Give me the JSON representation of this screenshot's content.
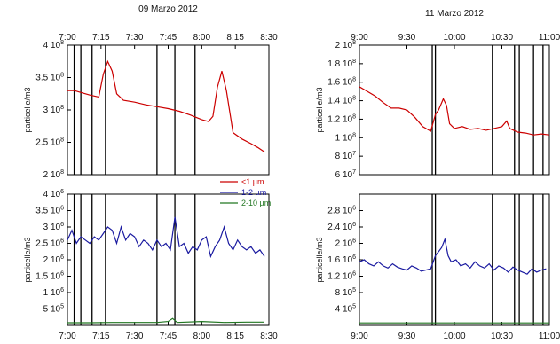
{
  "colors": {
    "lt1": "#cc0000",
    "r12": "#1a1aa0",
    "r210": "#227722",
    "frame": "#000000"
  },
  "legend": [
    {
      "label": "<1 µm",
      "color": "#cc0000"
    },
    {
      "label": "1-2 µm",
      "color": "#1a1aa0"
    },
    {
      "label": "2-10 µm",
      "color": "#227722"
    }
  ],
  "chart_data": [
    {
      "type": "line",
      "panel": "top-left",
      "title": "09 Marzo 2012",
      "ylabel": "particelle/m3",
      "xlim": [
        "7:00",
        "8:30"
      ],
      "x_ticks": [
        "7:00",
        "7:15",
        "7:30",
        "7:45",
        "8:00",
        "8:15",
        "8:30"
      ],
      "ylim": [
        200000000.0,
        400000000.0
      ],
      "y_ticks": [
        {
          "v": 200000000.0,
          "label": "2 10^8"
        },
        {
          "v": 250000000.0,
          "label": "2.5 10^8"
        },
        {
          "v": 300000000.0,
          "label": "3 10^8"
        },
        {
          "v": 350000000.0,
          "label": "3.5 10^8"
        },
        {
          "v": 400000000.0,
          "label": "4 10^8"
        }
      ],
      "event_lines": [
        "7:03",
        "7:06",
        "7:11",
        "7:17",
        "7:40",
        "7:48",
        "7:57"
      ],
      "series": [
        {
          "name": "<1 µm",
          "color": "#cc0000",
          "x": [
            "7:00",
            "7:03",
            "7:06",
            "7:10",
            "7:14",
            "7:16",
            "7:18",
            "7:20",
            "7:22",
            "7:25",
            "7:30",
            "7:35",
            "7:40",
            "7:45",
            "7:50",
            "7:55",
            "8:00",
            "8:03",
            "8:05",
            "8:07",
            "8:09",
            "8:11",
            "8:14",
            "8:18",
            "8:22",
            "8:25",
            "8:28"
          ],
          "y": [
            330000000.0,
            330000000.0,
            327000000.0,
            323000000.0,
            320000000.0,
            355000000.0,
            375000000.0,
            360000000.0,
            325000000.0,
            315000000.0,
            312000000.0,
            308000000.0,
            305000000.0,
            302000000.0,
            298000000.0,
            292000000.0,
            285000000.0,
            282000000.0,
            290000000.0,
            335000000.0,
            360000000.0,
            330000000.0,
            265000000.0,
            255000000.0,
            248000000.0,
            242000000.0,
            235000000.0
          ]
        }
      ]
    },
    {
      "type": "line",
      "panel": "top-right",
      "title": "11 Marzo 2012",
      "ylabel": "particelle/m3",
      "xlim": [
        "9:00",
        "11:00"
      ],
      "x_ticks": [
        "9:00",
        "9:30",
        "10:00",
        "10:30",
        "11:00"
      ],
      "ylim": [
        60000000.0,
        200000000.0
      ],
      "y_ticks": [
        {
          "v": 60000000.0,
          "label": "6 10^7"
        },
        {
          "v": 80000000.0,
          "label": "8 10^7"
        },
        {
          "v": 100000000.0,
          "label": "1 10^8"
        },
        {
          "v": 120000000.0,
          "label": "1.2 10^8"
        },
        {
          "v": 140000000.0,
          "label": "1.4 10^8"
        },
        {
          "v": 160000000.0,
          "label": "1.6 10^8"
        },
        {
          "v": 180000000.0,
          "label": "1.8 10^8"
        },
        {
          "v": 200000000.0,
          "label": "2 10^8"
        }
      ],
      "event_lines": [
        "9:46",
        "9:48",
        "10:24",
        "10:38",
        "10:41",
        "10:50",
        "10:56"
      ],
      "series": [
        {
          "name": "<1 µm",
          "color": "#cc0000",
          "x": [
            "9:00",
            "9:05",
            "9:10",
            "9:15",
            "9:20",
            "9:25",
            "9:30",
            "9:35",
            "9:40",
            "9:45",
            "9:48",
            "9:50",
            "9:53",
            "9:55",
            "9:57",
            "10:00",
            "10:05",
            "10:10",
            "10:15",
            "10:20",
            "10:25",
            "10:30",
            "10:33",
            "10:35",
            "10:40",
            "10:45",
            "10:50",
            "10:55",
            "11:00"
          ],
          "y": [
            155000000.0,
            150000000.0,
            145000000.0,
            138000000.0,
            132000000.0,
            132000000.0,
            130000000.0,
            122000000.0,
            112000000.0,
            107000000.0,
            125000000.0,
            130000000.0,
            142000000.0,
            135000000.0,
            115000000.0,
            110000000.0,
            112000000.0,
            109000000.0,
            110000000.0,
            108000000.0,
            110000000.0,
            112000000.0,
            118000000.0,
            110000000.0,
            106000000.0,
            105000000.0,
            103000000.0,
            104000000.0,
            103000000.0
          ]
        }
      ]
    },
    {
      "type": "line",
      "panel": "bottom-left",
      "ylabel": "particelle/m3",
      "xlim": [
        "7:00",
        "8:30"
      ],
      "x_ticks": [
        "7:00",
        "7:15",
        "7:30",
        "7:45",
        "8:00",
        "8:15",
        "8:30"
      ],
      "ylim": [
        0,
        4000000.0
      ],
      "y_ticks": [
        {
          "v": 500000.0,
          "label": "5 10^5"
        },
        {
          "v": 1000000.0,
          "label": "1 10^6"
        },
        {
          "v": 1500000.0,
          "label": "1.5 10^6"
        },
        {
          "v": 2000000.0,
          "label": "2 10^6"
        },
        {
          "v": 2500000.0,
          "label": "2.5 10^6"
        },
        {
          "v": 3000000.0,
          "label": "3 10^6"
        },
        {
          "v": 3500000.0,
          "label": "3.5 10^6"
        },
        {
          "v": 4000000.0,
          "label": "4 10^6"
        }
      ],
      "event_lines": [
        "7:03",
        "7:06",
        "7:11",
        "7:17",
        "7:40",
        "7:48",
        "7:57"
      ],
      "series": [
        {
          "name": "1-2 µm",
          "color": "#1a1aa0",
          "x": [
            "7:00",
            "7:02",
            "7:04",
            "7:06",
            "7:08",
            "7:10",
            "7:12",
            "7:14",
            "7:16",
            "7:18",
            "7:20",
            "7:22",
            "7:24",
            "7:26",
            "7:28",
            "7:30",
            "7:32",
            "7:34",
            "7:36",
            "7:38",
            "7:40",
            "7:42",
            "7:44",
            "7:46",
            "7:48",
            "7:50",
            "7:52",
            "7:54",
            "7:56",
            "7:58",
            "8:00",
            "8:02",
            "8:04",
            "8:06",
            "8:08",
            "8:10",
            "8:12",
            "8:14",
            "8:16",
            "8:18",
            "8:20",
            "8:22",
            "8:24",
            "8:26",
            "8:28"
          ],
          "y": [
            2600000.0,
            2900000.0,
            2500000.0,
            2700000.0,
            2600000.0,
            2500000.0,
            2700000.0,
            2600000.0,
            2800000.0,
            3000000.0,
            2900000.0,
            2500000.0,
            3000000.0,
            2600000.0,
            2800000.0,
            2700000.0,
            2400000.0,
            2600000.0,
            2500000.0,
            2300000.0,
            2600000.0,
            2400000.0,
            2500000.0,
            2300000.0,
            3300000.0,
            2400000.0,
            2500000.0,
            2200000.0,
            2400000.0,
            2300000.0,
            2600000.0,
            2700000.0,
            2100000.0,
            2400000.0,
            2600000.0,
            3000000.0,
            2500000.0,
            2300000.0,
            2600000.0,
            2400000.0,
            2300000.0,
            2400000.0,
            2200000.0,
            2300000.0,
            2100000.0
          ]
        },
        {
          "name": "2-10 µm",
          "color": "#227722",
          "x": [
            "7:00",
            "7:10",
            "7:20",
            "7:30",
            "7:40",
            "7:45",
            "7:47",
            "7:49",
            "8:00",
            "8:10",
            "8:20",
            "8:28"
          ],
          "y": [
            80000.0,
            80000.0,
            90000.0,
            90000.0,
            90000.0,
            120000.0,
            210000.0,
            90000.0,
            120000.0,
            90000.0,
            100000.0,
            100000.0
          ]
        }
      ]
    },
    {
      "type": "line",
      "panel": "bottom-right",
      "ylabel": "particelle/m3",
      "xlim": [
        "9:00",
        "11:00"
      ],
      "x_ticks": [
        "9:00",
        "9:30",
        "10:00",
        "10:30",
        "11:00"
      ],
      "ylim": [
        0,
        3200000.0
      ],
      "y_ticks": [
        {
          "v": 400000.0,
          "label": "4 10^5"
        },
        {
          "v": 800000.0,
          "label": "8 10^5"
        },
        {
          "v": 1200000.0,
          "label": "1.2 10^6"
        },
        {
          "v": 1600000.0,
          "label": "1.6 10^6"
        },
        {
          "v": 2000000.0,
          "label": "2 10^6"
        },
        {
          "v": 2400000.0,
          "label": "2.4 10^6"
        },
        {
          "v": 2800000.0,
          "label": "2.8 10^6"
        }
      ],
      "event_lines": [
        "9:46",
        "9:48",
        "10:24",
        "10:38",
        "10:41",
        "10:50",
        "10:56"
      ],
      "series": [
        {
          "name": "1-2 µm",
          "color": "#1a1aa0",
          "x": [
            "9:00",
            "9:03",
            "9:06",
            "9:09",
            "9:12",
            "9:15",
            "9:18",
            "9:21",
            "9:24",
            "9:27",
            "9:30",
            "9:33",
            "9:36",
            "9:39",
            "9:42",
            "9:45",
            "9:48",
            "9:50",
            "9:52",
            "9:54",
            "9:56",
            "9:58",
            "10:01",
            "10:04",
            "10:07",
            "10:10",
            "10:13",
            "10:16",
            "10:19",
            "10:22",
            "10:25",
            "10:28",
            "10:31",
            "10:34",
            "10:37",
            "10:40",
            "10:43",
            "10:46",
            "10:49",
            "10:52",
            "10:55",
            "10:58"
          ],
          "y": [
            1550000.0,
            1600000.0,
            1500000.0,
            1450000.0,
            1550000.0,
            1450000.0,
            1400000.0,
            1500000.0,
            1420000.0,
            1380000.0,
            1350000.0,
            1450000.0,
            1400000.0,
            1320000.0,
            1350000.0,
            1380000.0,
            1700000.0,
            1800000.0,
            1900000.0,
            2100000.0,
            1700000.0,
            1550000.0,
            1600000.0,
            1450000.0,
            1500000.0,
            1400000.0,
            1550000.0,
            1450000.0,
            1400000.0,
            1500000.0,
            1350000.0,
            1450000.0,
            1400000.0,
            1300000.0,
            1420000.0,
            1350000.0,
            1300000.0,
            1250000.0,
            1380000.0,
            1300000.0,
            1350000.0,
            1380000.0
          ]
        },
        {
          "name": "2-10 µm",
          "color": "#227722",
          "x": [
            "9:00",
            "9:30",
            "10:00",
            "10:30",
            "11:00"
          ],
          "y": [
            60000.0,
            60000.0,
            60000.0,
            60000.0,
            60000.0
          ]
        }
      ]
    }
  ]
}
